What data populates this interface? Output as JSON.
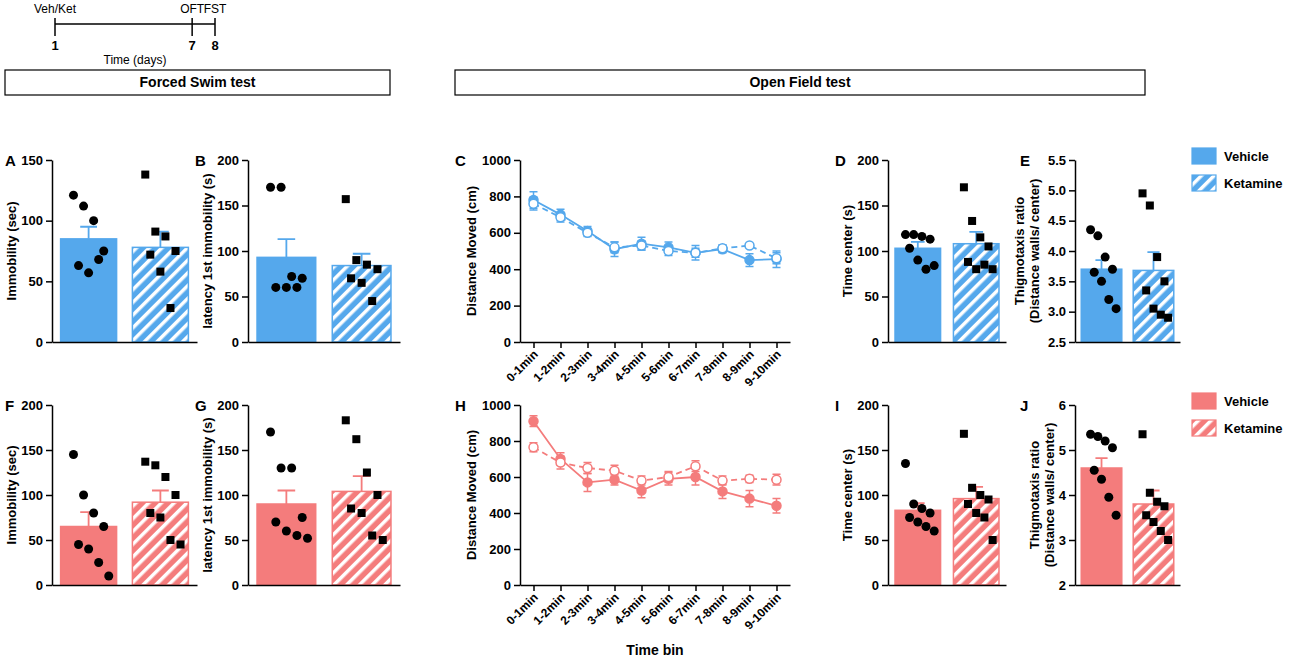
{
  "timeline": {
    "start": {
      "label": "Veh/Ket",
      "day": 1
    },
    "events": [
      {
        "label": "OFT",
        "day": 7
      },
      {
        "label": "FST",
        "day": 8
      }
    ],
    "days": [
      1,
      7,
      8
    ],
    "xlabel": "Time (days)"
  },
  "headers": [
    "Forced Swim test",
    "Open Field test"
  ],
  "chart_data": [
    {
      "type": "bar",
      "title": "A",
      "ylabel": "Immobility (sec)",
      "categories": [
        null,
        null
      ],
      "values": [
        85,
        78
      ],
      "errors": [
        10,
        13
      ],
      "points": [
        [
          121,
          112,
          100,
          75,
          63,
          57,
          68
        ],
        [
          138,
          91,
          87,
          75,
          72,
          58,
          28
        ]
      ],
      "color": "#55a8ec",
      "ylim": [
        0,
        150
      ],
      "yticks": [
        0,
        50,
        100,
        150
      ]
    },
    {
      "type": "bar",
      "title": "B",
      "ylabel": "latency 1st immobility (s)",
      "categories": [
        null,
        null
      ],
      "values": [
        93,
        84
      ],
      "errors": [
        20,
        13
      ],
      "points": [
        [
          170,
          170,
          72,
          70,
          60,
          60,
          60
        ],
        [
          157,
          90,
          85,
          80,
          70,
          65,
          45
        ]
      ],
      "color": "#55a8ec",
      "ylim": [
        0,
        200
      ],
      "yticks": [
        0,
        50,
        100,
        150,
        200
      ]
    },
    {
      "type": "line",
      "title": "C",
      "ylabel": "Distance Moved (cm)",
      "categories": [
        "0-1min",
        "1-2min",
        "2-3min",
        "3-4min",
        "4-5min",
        "5-6min",
        "6-7min",
        "7-8min",
        "8-9min",
        "9-10min"
      ],
      "series": [
        {
          "name": "Vehicle",
          "color": "#55a8ec",
          "line_style": "solid",
          "marker": "filled",
          "values": [
            780,
            700,
            610,
            510,
            540,
            520,
            490,
            510,
            450,
            455
          ],
          "errors": [
            45,
            30,
            25,
            40,
            35,
            30,
            40,
            20,
            35,
            45
          ]
        },
        {
          "name": "Ketamine",
          "color": "#55a8ec",
          "line_style": "dashed",
          "marker": "open",
          "values": [
            760,
            685,
            600,
            520,
            530,
            500,
            490,
            515,
            530,
            460
          ],
          "errors": [
            35,
            25,
            20,
            30,
            25,
            25,
            25,
            20,
            10,
            30
          ]
        }
      ],
      "ylim": [
        0,
        1000
      ],
      "yticks": [
        0,
        200,
        400,
        600,
        800,
        1000
      ],
      "legend": "right"
    },
    {
      "type": "bar",
      "title": "D",
      "ylabel": "Time center (s)",
      "categories": [
        null,
        null
      ],
      "values": [
        103,
        108
      ],
      "errors": [
        7,
        13
      ],
      "points": [
        [
          118,
          118,
          116,
          113,
          103,
          90,
          80,
          84
        ],
        [
          170,
          133,
          115,
          105,
          88,
          80,
          85,
          80
        ]
      ],
      "color": "#55a8ec",
      "ylim": [
        0,
        200
      ],
      "yticks": [
        0,
        50,
        100,
        150,
        200
      ]
    },
    {
      "type": "bar",
      "title": "E",
      "ylabel": [
        "Thigmotaxis ratio",
        "(Distance walls/ center)"
      ],
      "categories": [
        null,
        null
      ],
      "values": [
        3.7,
        3.68
      ],
      "errors": [
        0.15,
        0.3
      ],
      "points": [
        [
          4.35,
          4.25,
          3.9,
          3.7,
          3.65,
          3.5,
          3.2,
          3.05
        ],
        [
          4.95,
          4.75,
          3.9,
          3.5,
          3.35,
          3.05,
          2.95,
          2.9
        ]
      ],
      "color": "#55a8ec",
      "ylim": [
        2.5,
        5.5
      ],
      "yticks": [
        2.5,
        {
          "value": 3,
          "label": "3.0"
        },
        3.5,
        {
          "value": 4,
          "label": "4.0"
        },
        4.5,
        {
          "value": 5,
          "label": "5.0"
        },
        5.5
      ]
    },
    {
      "type": "bar",
      "title": "F",
      "ylabel": "Immobility (sec)",
      "categories": [
        null,
        null
      ],
      "values": [
        65,
        92
      ],
      "errors": [
        16,
        13
      ],
      "points": [
        [
          145,
          100,
          80,
          65,
          45,
          40,
          25,
          10
        ],
        [
          137,
          133,
          120,
          100,
          80,
          75,
          50,
          45
        ]
      ],
      "color": "#f47c7c",
      "ylim": [
        0,
        200
      ],
      "yticks": [
        0,
        50,
        100,
        150,
        200
      ]
    },
    {
      "type": "bar",
      "title": "G",
      "ylabel": "latency 1st immobility (s)",
      "categories": [
        null,
        null
      ],
      "values": [
        90,
        104
      ],
      "errors": [
        15,
        17
      ],
      "points": [
        [
          170,
          130,
          130,
          75,
          70,
          60,
          55,
          52
        ],
        [
          183,
          162,
          125,
          100,
          85,
          80,
          55,
          50
        ]
      ],
      "color": "#f47c7c",
      "ylim": [
        0,
        200
      ],
      "yticks": [
        0,
        50,
        100,
        150,
        200
      ]
    },
    {
      "type": "line",
      "title": "H",
      "ylabel": "Distance Moved (cm)",
      "xlabel": "Time bin",
      "categories": [
        "0-1min",
        "1-2min",
        "2-3min",
        "3-4min",
        "4-5min",
        "5-6min",
        "6-7min",
        "7-8min",
        "8-9min",
        "9-10min"
      ],
      "series": [
        {
          "name": "Vehicle",
          "color": "#f47c7c",
          "line_style": "solid",
          "marker": "filled",
          "values": [
            910,
            700,
            570,
            585,
            525,
            590,
            600,
            520,
            480,
            440
          ],
          "errors": [
            30,
            35,
            50,
            30,
            40,
            35,
            45,
            40,
            45,
            40
          ]
        },
        {
          "name": "Ketamine",
          "color": "#f47c7c",
          "line_style": "dashed",
          "marker": "open",
          "values": [
            765,
            680,
            650,
            635,
            580,
            600,
            660,
            580,
            590,
            585
          ],
          "errors": [
            25,
            35,
            30,
            30,
            25,
            30,
            30,
            25,
            20,
            30
          ]
        }
      ],
      "ylim": [
        0,
        1000
      ],
      "yticks": [
        0,
        200,
        400,
        600,
        800,
        1000
      ],
      "legend": "right"
    },
    {
      "type": "bar",
      "title": "I",
      "ylabel": "Time center (s)",
      "categories": [
        null,
        null
      ],
      "values": [
        83,
        96
      ],
      "errors": [
        8,
        13
      ],
      "points": [
        [
          135,
          90,
          85,
          80,
          75,
          70,
          65,
          60
        ],
        [
          168,
          108,
          100,
          95,
          90,
          80,
          75,
          50
        ]
      ],
      "color": "#f47c7c",
      "ylim": [
        0,
        200
      ],
      "yticks": [
        0,
        50,
        100,
        150,
        200
      ]
    },
    {
      "type": "bar",
      "title": "J",
      "ylabel": [
        "Thigmotaxis ratio",
        "(Distance walls/ center)"
      ],
      "categories": [
        null,
        null
      ],
      "values": [
        4.6,
        3.8
      ],
      "errors": [
        0.22,
        0.3
      ],
      "points": [
        [
          5.35,
          5.3,
          5.2,
          5.05,
          4.55,
          4.35,
          3.95,
          3.55
        ],
        [
          5.35,
          4.05,
          3.85,
          3.75,
          3.55,
          3.4,
          3.2,
          3.0
        ]
      ],
      "color": "#f47c7c",
      "ylim": [
        2,
        6
      ],
      "yticks": [
        2,
        3,
        4,
        5,
        6
      ]
    }
  ]
}
